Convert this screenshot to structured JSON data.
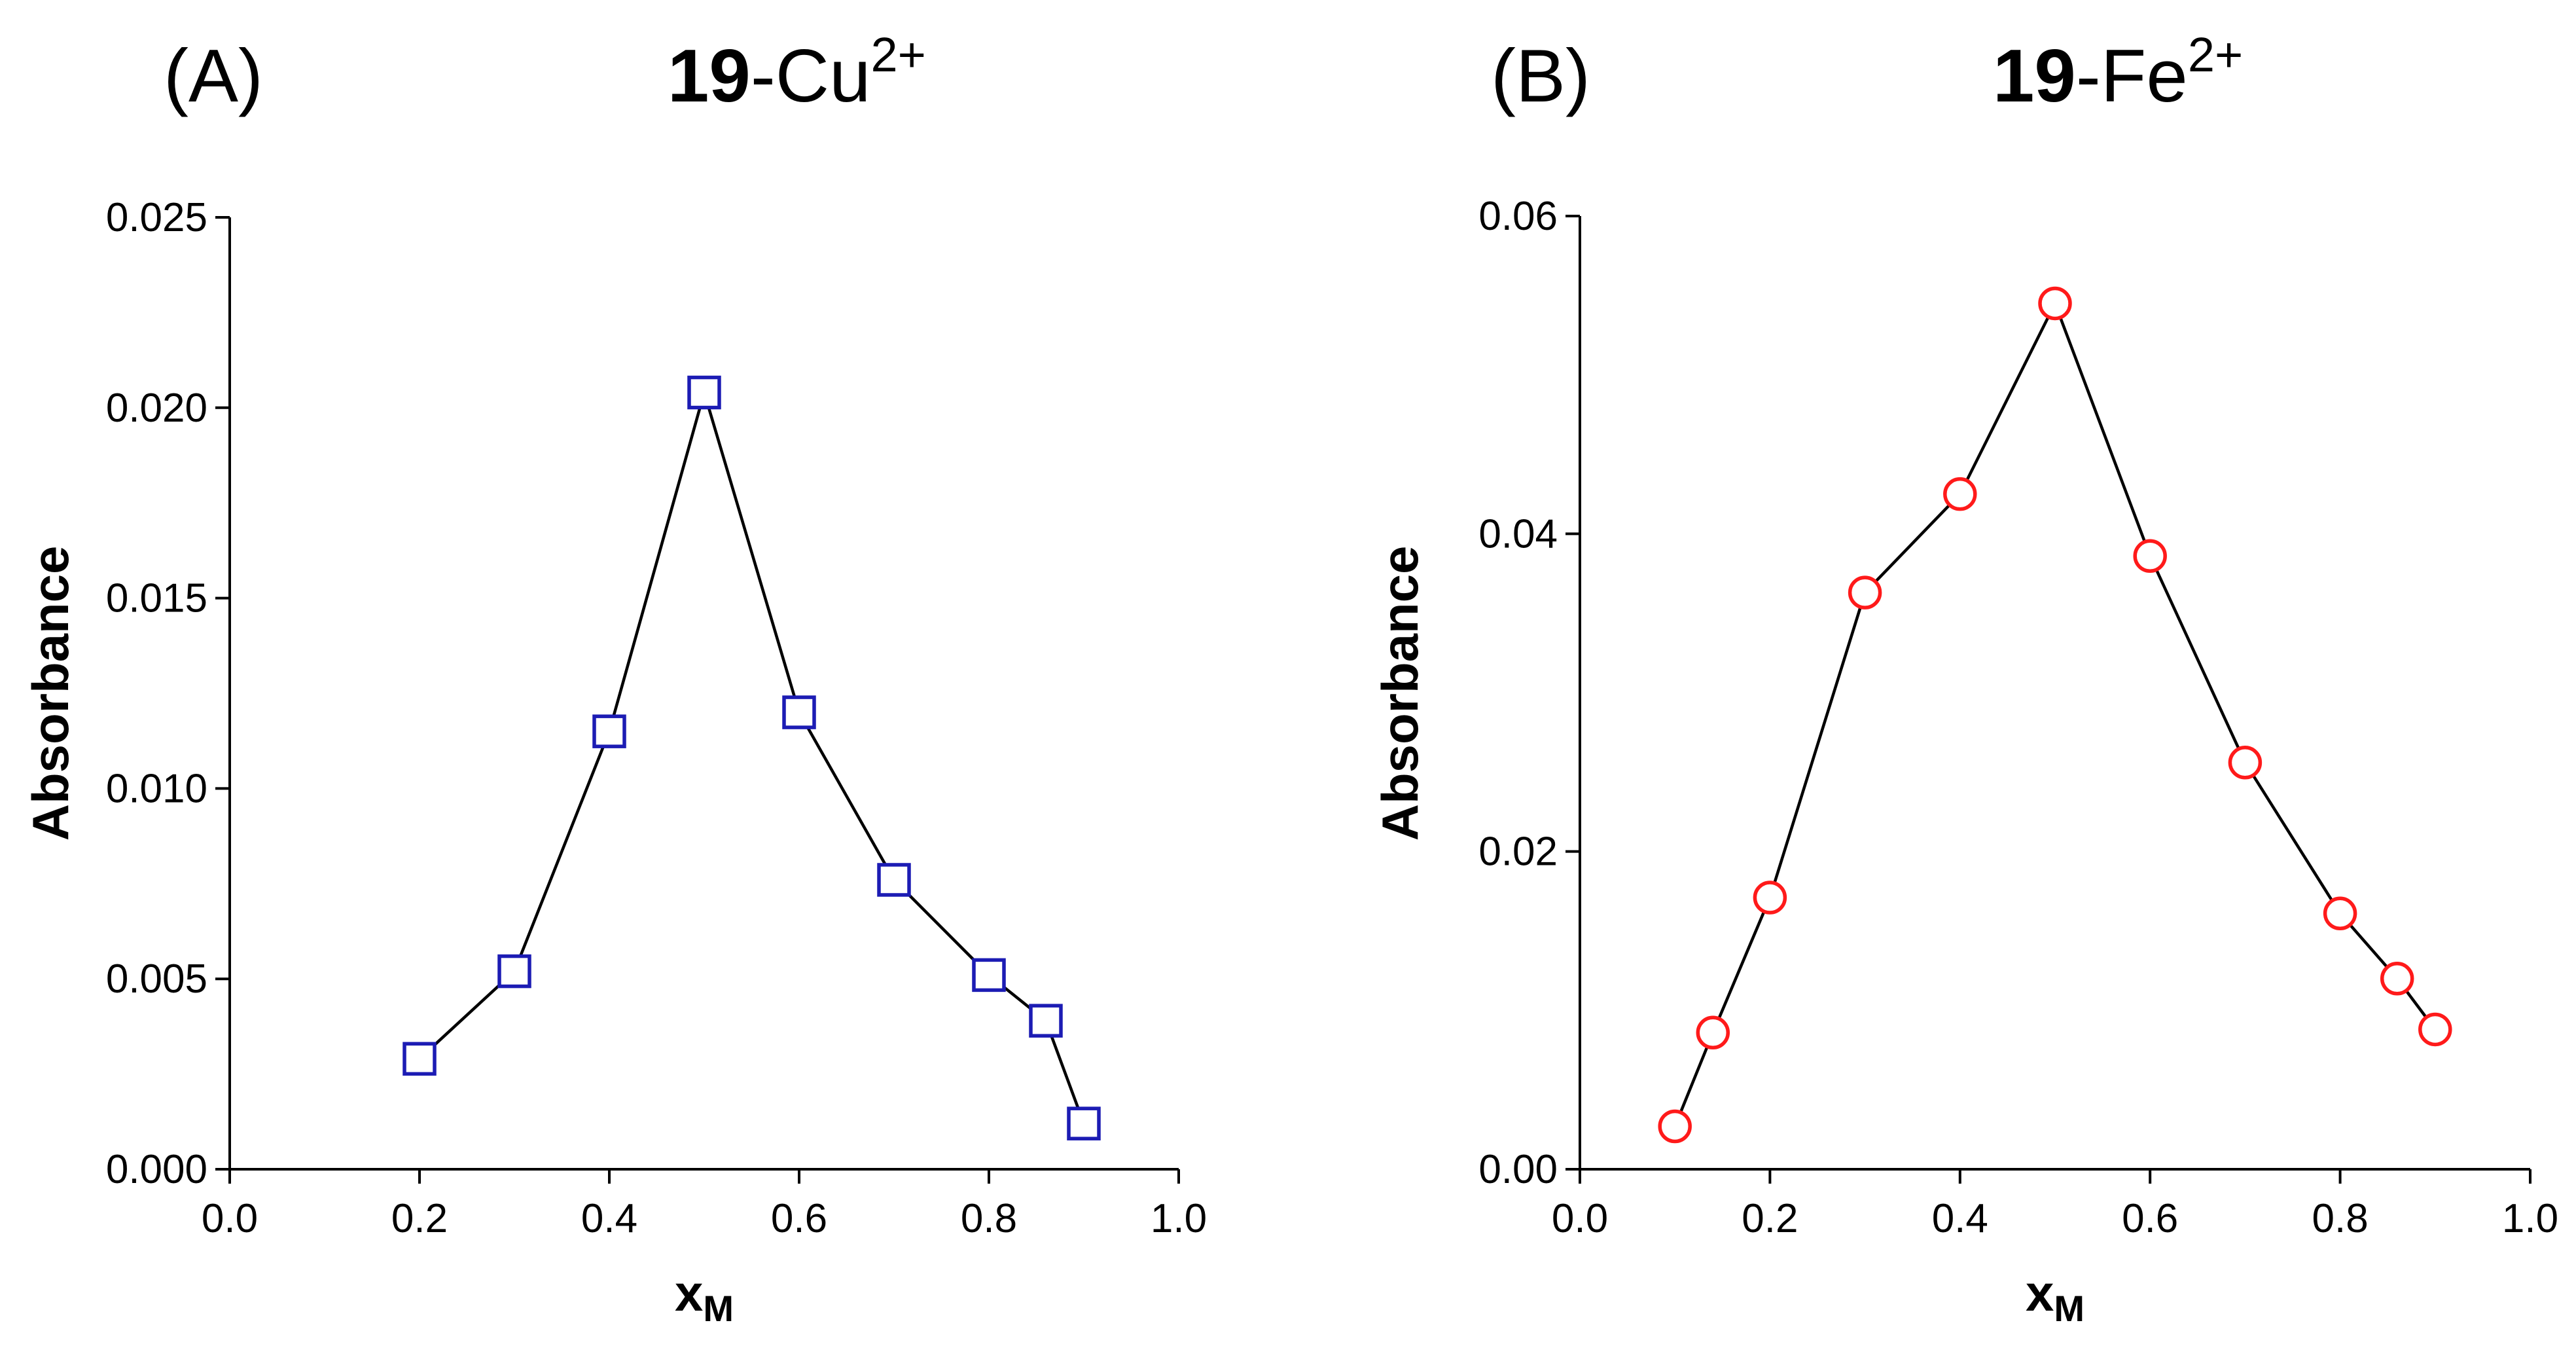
{
  "chart_data": [
    {
      "type": "line",
      "panel": "(A)",
      "title": {
        "bold": "19",
        "text": "-Cu",
        "sup": "2+"
      },
      "xlabel": {
        "main": "x",
        "sub": "M"
      },
      "ylabel": "Absorbance",
      "xlim": [
        0.0,
        1.0
      ],
      "ylim": [
        0.0,
        0.025
      ],
      "xticks": [
        "0.0",
        "0.2",
        "0.4",
        "0.6",
        "0.8",
        "1.0"
      ],
      "yticks": [
        "0.000",
        "0.005",
        "0.010",
        "0.015",
        "0.020",
        "0.025"
      ],
      "marker": "square",
      "marker_color": "#1c1cb4",
      "line_color": "#000000",
      "grid": false,
      "x": [
        0.2,
        0.3,
        0.4,
        0.5,
        0.6,
        0.7,
        0.8,
        0.86,
        0.9
      ],
      "y": [
        0.0029,
        0.0052,
        0.0115,
        0.0204,
        0.012,
        0.0076,
        0.0051,
        0.0039,
        0.0012
      ]
    },
    {
      "type": "line",
      "panel": "(B)",
      "title": {
        "bold": "19",
        "text": "-Fe",
        "sup": "2+"
      },
      "xlabel": {
        "main": "x",
        "sub": "M"
      },
      "ylabel": "Absorbance",
      "xlim": [
        0.0,
        1.0
      ],
      "ylim": [
        0.0,
        0.06
      ],
      "xticks": [
        "0.0",
        "0.2",
        "0.4",
        "0.6",
        "0.8",
        "1.0"
      ],
      "yticks": [
        "0.00",
        "0.02",
        "0.04",
        "0.06"
      ],
      "marker": "circle",
      "marker_color": "#ff1a1a",
      "line_color": "#000000",
      "grid": false,
      "x": [
        0.1,
        0.14,
        0.2,
        0.3,
        0.4,
        0.5,
        0.6,
        0.7,
        0.8,
        0.86,
        0.9
      ],
      "y": [
        0.0027,
        0.0086,
        0.0171,
        0.0363,
        0.0425,
        0.0545,
        0.0386,
        0.0256,
        0.0161,
        0.012,
        0.0088
      ]
    }
  ]
}
